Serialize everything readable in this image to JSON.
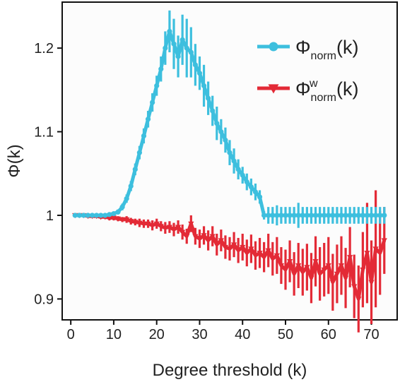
{
  "chart_data": {
    "type": "line",
    "title": "",
    "xlabel": "Degree threshold (k)",
    "ylabel": "Φ(k)",
    "xlim": [
      -2,
      76
    ],
    "ylim": [
      0.875,
      1.255
    ],
    "xticks": [
      0,
      10,
      20,
      30,
      40,
      50,
      60,
      70
    ],
    "xtick_labels": [
      "0",
      "10",
      "20",
      "30",
      "40",
      "50",
      "60",
      "70"
    ],
    "yticks": [
      0.9,
      1.0,
      1.1,
      1.2
    ],
    "ytick_labels": [
      "0.9",
      "1",
      "1.1",
      "1.2"
    ],
    "grid": false,
    "legend_position": "top-right",
    "series": [
      {
        "name": "Φnorm(k)",
        "legend_main": "Φ",
        "legend_sub": "norm",
        "legend_sup": "",
        "legend_tail": "(k)",
        "color": "#3dbfde",
        "marker": "circle",
        "x": [
          1,
          2,
          3,
          4,
          5,
          6,
          7,
          8,
          9,
          10,
          11,
          12,
          13,
          14,
          15,
          16,
          17,
          18,
          19,
          20,
          21,
          22,
          23,
          24,
          25,
          26,
          27,
          28,
          29,
          30,
          31,
          32,
          33,
          34,
          35,
          36,
          37,
          38,
          39,
          40,
          41,
          42,
          43,
          44,
          45,
          46,
          47,
          48,
          49,
          50,
          51,
          52,
          53,
          54,
          55,
          56,
          57,
          58,
          59,
          60,
          61,
          62,
          63,
          64,
          65,
          66,
          67,
          68,
          69,
          70,
          71,
          72,
          73
        ],
        "y": [
          1.0,
          1.0,
          1.0,
          1.0,
          1.0,
          1.0,
          1.0,
          1.0,
          1.001,
          1.002,
          1.004,
          1.01,
          1.02,
          1.035,
          1.055,
          1.075,
          1.095,
          1.115,
          1.135,
          1.155,
          1.175,
          1.2,
          1.22,
          1.205,
          1.19,
          1.21,
          1.2,
          1.195,
          1.18,
          1.17,
          1.155,
          1.14,
          1.125,
          1.11,
          1.1,
          1.09,
          1.075,
          1.065,
          1.055,
          1.048,
          1.04,
          1.034,
          1.028,
          1.022,
          1.0,
          1.0,
          1.0,
          1.0,
          1.0,
          1.0,
          1.0,
          1.0,
          1.0,
          1.0,
          1.0,
          1.0,
          1.0,
          1.0,
          1.0,
          1.0,
          1.0,
          1.0,
          1.0,
          1.0,
          1.0,
          1.0,
          1.0,
          1.0,
          1.0,
          1.0,
          1.0,
          1.0,
          1.0
        ],
        "err": [
          0.001,
          0.001,
          0.001,
          0.001,
          0.001,
          0.001,
          0.001,
          0.001,
          0.002,
          0.002,
          0.003,
          0.004,
          0.005,
          0.006,
          0.007,
          0.008,
          0.009,
          0.01,
          0.011,
          0.012,
          0.015,
          0.02,
          0.025,
          0.03,
          0.025,
          0.03,
          0.035,
          0.03,
          0.025,
          0.02,
          0.025,
          0.02,
          0.018,
          0.02,
          0.015,
          0.015,
          0.015,
          0.015,
          0.012,
          0.01,
          0.01,
          0.01,
          0.01,
          0.008,
          0.005,
          0.01,
          0.01,
          0.012,
          0.01,
          0.01,
          0.01,
          0.01,
          0.015,
          0.01,
          0.01,
          0.01,
          0.01,
          0.01,
          0.01,
          0.01,
          0.01,
          0.01,
          0.01,
          0.01,
          0.01,
          0.01,
          0.01,
          0.01,
          0.01,
          0.01,
          0.01,
          0.01,
          0.01
        ]
      },
      {
        "name": "Φwnorm(k)",
        "legend_main": "Φ",
        "legend_sub": "norm",
        "legend_sup": "w",
        "legend_tail": "(k)",
        "color": "#e32a36",
        "marker": "triangle-down",
        "x": [
          1,
          2,
          3,
          4,
          5,
          6,
          7,
          8,
          9,
          10,
          11,
          12,
          13,
          14,
          15,
          16,
          17,
          18,
          19,
          20,
          21,
          22,
          23,
          24,
          25,
          26,
          27,
          28,
          29,
          30,
          31,
          32,
          33,
          34,
          35,
          36,
          37,
          38,
          39,
          40,
          41,
          42,
          43,
          44,
          45,
          46,
          47,
          48,
          49,
          50,
          51,
          52,
          53,
          54,
          55,
          56,
          57,
          58,
          59,
          60,
          61,
          62,
          63,
          64,
          65,
          66,
          67,
          68,
          69,
          70,
          71,
          72,
          73
        ],
        "y": [
          1.0,
          1.0,
          1.0,
          0.999,
          0.999,
          0.999,
          0.998,
          0.998,
          0.997,
          0.997,
          0.996,
          0.995,
          0.995,
          0.993,
          0.992,
          0.991,
          0.99,
          0.99,
          0.988,
          0.99,
          0.987,
          0.985,
          0.986,
          0.983,
          0.986,
          0.98,
          0.975,
          0.99,
          0.975,
          0.972,
          0.976,
          0.97,
          0.975,
          0.965,
          0.97,
          0.962,
          0.96,
          0.965,
          0.958,
          0.962,
          0.955,
          0.96,
          0.952,
          0.955,
          0.95,
          0.958,
          0.948,
          0.952,
          0.94,
          0.935,
          0.945,
          0.93,
          0.94,
          0.932,
          0.938,
          0.925,
          0.945,
          0.93,
          0.935,
          0.94,
          0.92,
          0.93,
          0.94,
          0.925,
          0.95,
          0.915,
          0.9,
          0.935,
          0.955,
          0.92,
          0.96,
          0.955,
          0.97
        ],
        "err": [
          0.002,
          0.002,
          0.002,
          0.002,
          0.002,
          0.002,
          0.002,
          0.002,
          0.003,
          0.003,
          0.003,
          0.003,
          0.004,
          0.004,
          0.004,
          0.005,
          0.005,
          0.005,
          0.006,
          0.006,
          0.006,
          0.007,
          0.007,
          0.008,
          0.008,
          0.009,
          0.009,
          0.01,
          0.01,
          0.011,
          0.011,
          0.012,
          0.012,
          0.013,
          0.013,
          0.014,
          0.014,
          0.015,
          0.015,
          0.016,
          0.016,
          0.017,
          0.017,
          0.018,
          0.018,
          0.02,
          0.02,
          0.022,
          0.022,
          0.024,
          0.025,
          0.026,
          0.027,
          0.028,
          0.028,
          0.03,
          0.03,
          0.032,
          0.032,
          0.034,
          0.034,
          0.035,
          0.035,
          0.036,
          0.036,
          0.038,
          0.04,
          0.045,
          0.06,
          0.05,
          0.07,
          0.05,
          0.04
        ]
      }
    ]
  }
}
